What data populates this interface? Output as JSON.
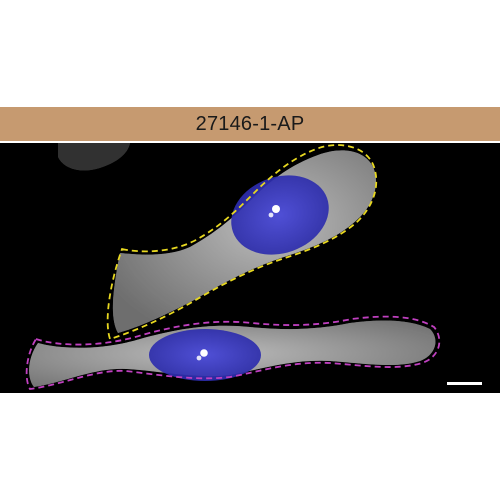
{
  "header": {
    "label": "27146-1-AP",
    "band_color": "#c69a70"
  },
  "micrograph": {
    "background_color": "#000000",
    "cytoplasm_color": "#d4d4d4",
    "nucleus_color": "#3a3acf",
    "nucleolus_color": "#ffffff",
    "cell_outline_top_color": "#e8d820",
    "cell_outline_bottom_color": "#c040c0",
    "scale_bar_color": "#ffffff"
  }
}
